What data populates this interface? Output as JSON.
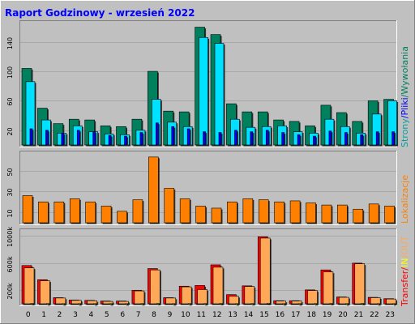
{
  "title": "Raport Godzinowy -  wrzesień 2022",
  "colors": {
    "page_bg": "#C0C0C0",
    "plot_bg": "#C0C0C0",
    "grid": "#A8A8A8",
    "hits": "#00805C",
    "files": "#0000FF",
    "pages": "#00E0FF",
    "sites": "#FF8000",
    "kbytes": "#FF0000",
    "kbytes_in": "#FFFF00",
    "kbytes_out": "#FFA858",
    "label_blue": "#0000FF",
    "label_teal": "#00A0A0"
  },
  "legends": {
    "top": [
      "Strony",
      "/",
      "Pliki",
      "/",
      "Wywołania"
    ],
    "middle": [
      "Lokalizacje"
    ],
    "bottom": [
      "Transfer",
      "/",
      "IN",
      "/",
      "OUT"
    ]
  },
  "chart_data": [
    {
      "type": "bar",
      "categories": [
        "0",
        "1",
        "2",
        "3",
        "4",
        "5",
        "6",
        "7",
        "8",
        "9",
        "10",
        "11",
        "12",
        "13",
        "14",
        "15",
        "16",
        "17",
        "18",
        "19",
        "20",
        "21",
        "22",
        "23"
      ],
      "yticks": [
        "20",
        "60",
        "100",
        "140"
      ],
      "ylim": [
        0,
        165
      ],
      "series": [
        {
          "name": "Wywołania",
          "values": [
            104,
            50,
            29,
            35,
            34,
            26,
            25,
            35,
            100,
            46,
            45,
            160,
            150,
            56,
            45,
            45,
            34,
            32,
            26,
            54,
            44,
            32,
            60,
            62
          ]
        },
        {
          "name": "Pliki",
          "values": [
            22,
            20,
            16,
            20,
            18,
            13,
            12,
            17,
            30,
            25,
            22,
            18,
            17,
            20,
            18,
            20,
            17,
            14,
            12,
            19,
            17,
            14,
            18,
            18
          ]
        },
        {
          "name": "Strony",
          "values": [
            86,
            34,
            16,
            26,
            18,
            15,
            14,
            20,
            62,
            31,
            25,
            146,
            138,
            35,
            24,
            25,
            26,
            18,
            16,
            35,
            25,
            16,
            42,
            60
          ]
        }
      ]
    },
    {
      "type": "bar",
      "categories": [
        "0",
        "1",
        "2",
        "3",
        "4",
        "5",
        "6",
        "7",
        "8",
        "9",
        "10",
        "11",
        "12",
        "13",
        "14",
        "15",
        "16",
        "17",
        "18",
        "19",
        "20",
        "21",
        "22",
        "23"
      ],
      "yticks": [
        "10",
        "30",
        "50"
      ],
      "ylim": [
        0,
        66
      ],
      "series": [
        {
          "name": "Lokalizacje",
          "values": [
            26,
            20,
            20,
            23,
            20,
            16,
            11,
            22,
            63,
            33,
            23,
            16,
            14,
            20,
            23,
            22,
            20,
            21,
            19,
            17,
            17,
            13,
            18,
            16
          ]
        }
      ]
    },
    {
      "type": "bar",
      "categories": [
        "0",
        "1",
        "2",
        "3",
        "4",
        "5",
        "6",
        "7",
        "8",
        "9",
        "10",
        "11",
        "12",
        "13",
        "14",
        "15",
        "16",
        "17",
        "18",
        "19",
        "20",
        "21",
        "22",
        "23"
      ],
      "yticks": [
        "200k",
        "600k",
        "1000k"
      ],
      "ylim": [
        0,
        1065
      ],
      "series": [
        {
          "name": "Transfer",
          "values": [
            565,
            355,
            90,
            55,
            50,
            40,
            40,
            200,
            520,
            90,
            260,
            270,
            575,
            135,
            265,
            990,
            45,
            45,
            205,
            500,
            100,
            600,
            95,
            75
          ]
        },
        {
          "name": "IN",
          "values": [
            5,
            3,
            2,
            2,
            2,
            2,
            2,
            3,
            5,
            2,
            3,
            3,
            5,
            2,
            3,
            8,
            2,
            2,
            3,
            5,
            2,
            5,
            2,
            2
          ]
        },
        {
          "name": "OUT",
          "values": [
            530,
            340,
            85,
            50,
            45,
            35,
            35,
            190,
            500,
            85,
            250,
            210,
            540,
            110,
            255,
            970,
            40,
            40,
            195,
            470,
            95,
            590,
            90,
            70
          ]
        }
      ]
    }
  ]
}
